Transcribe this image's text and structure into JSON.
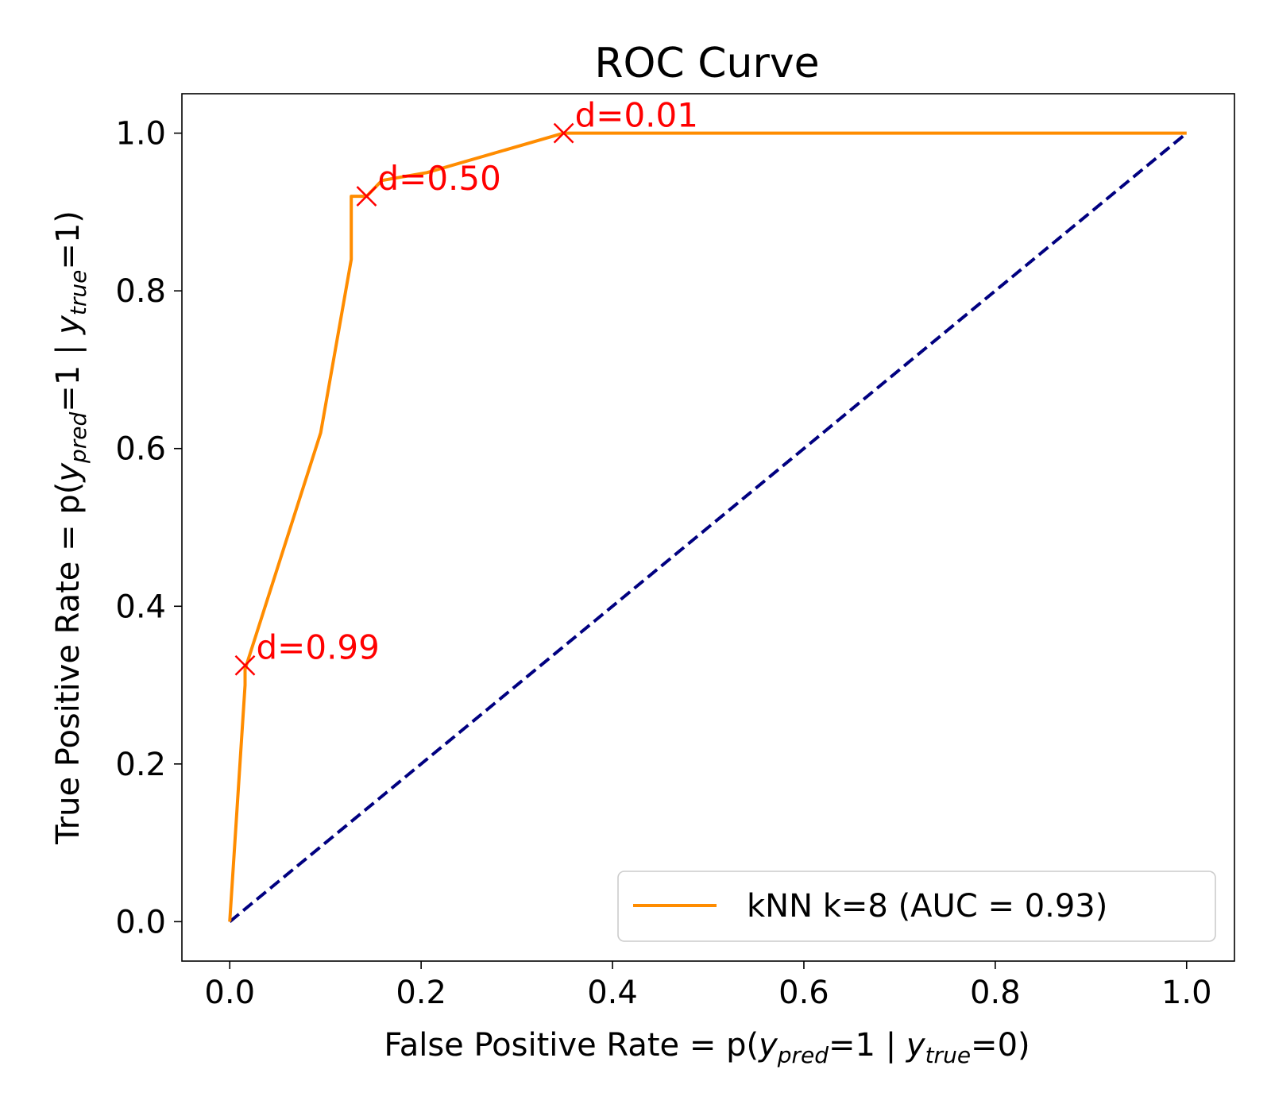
{
  "chart_data": {
    "type": "line",
    "title": "ROC Curve",
    "xlabel": {
      "pre": "False Positive Rate = p(",
      "var1": "y",
      "sub1": "pred",
      "mid": "=1 | ",
      "var2": "y",
      "sub2": "true",
      "post": "=0)"
    },
    "ylabel": {
      "pre": "True Positive Rate = p(",
      "var1": "y",
      "sub1": "pred",
      "mid": "=1 | ",
      "var2": "y",
      "sub2": "true",
      "post": "=1)"
    },
    "xlim": [
      -0.05,
      1.05
    ],
    "ylim": [
      -0.05,
      1.05
    ],
    "xticks": [
      0.0,
      0.2,
      0.4,
      0.6,
      0.8,
      1.0
    ],
    "yticks": [
      0.0,
      0.2,
      0.4,
      0.6,
      0.8,
      1.0
    ],
    "xtick_labels": [
      "0.0",
      "0.2",
      "0.4",
      "0.6",
      "0.8",
      "1.0"
    ],
    "ytick_labels": [
      "0.0",
      "0.2",
      "0.4",
      "0.6",
      "0.8",
      "1.0"
    ],
    "grid": false,
    "legend_position": "lower-right",
    "series": [
      {
        "name": "kNN k=8 (AUC = 0.93)",
        "color": "#ff8c00",
        "style": "solid",
        "x": [
          0.0,
          0.016,
          0.016,
          0.095,
          0.127,
          0.127,
          0.143,
          0.159,
          0.206,
          0.349,
          1.0
        ],
        "y": [
          0.0,
          0.3,
          0.32,
          0.62,
          0.84,
          0.92,
          0.92,
          0.94,
          0.95,
          1.0,
          1.0
        ]
      },
      {
        "name": "",
        "color": "#000080",
        "style": "dashed",
        "x": [
          0.0,
          1.0
        ],
        "y": [
          0.0,
          1.0
        ]
      }
    ],
    "annotations": [
      {
        "text": "d=0.99",
        "x": 0.016,
        "y": 0.325,
        "color": "#ff0000",
        "marker": "x"
      },
      {
        "text": "d=0.50",
        "x": 0.143,
        "y": 0.92,
        "color": "#ff0000",
        "marker": "x"
      },
      {
        "text": "d=0.01",
        "x": 0.349,
        "y": 1.0,
        "color": "#ff0000",
        "marker": "x"
      }
    ]
  }
}
